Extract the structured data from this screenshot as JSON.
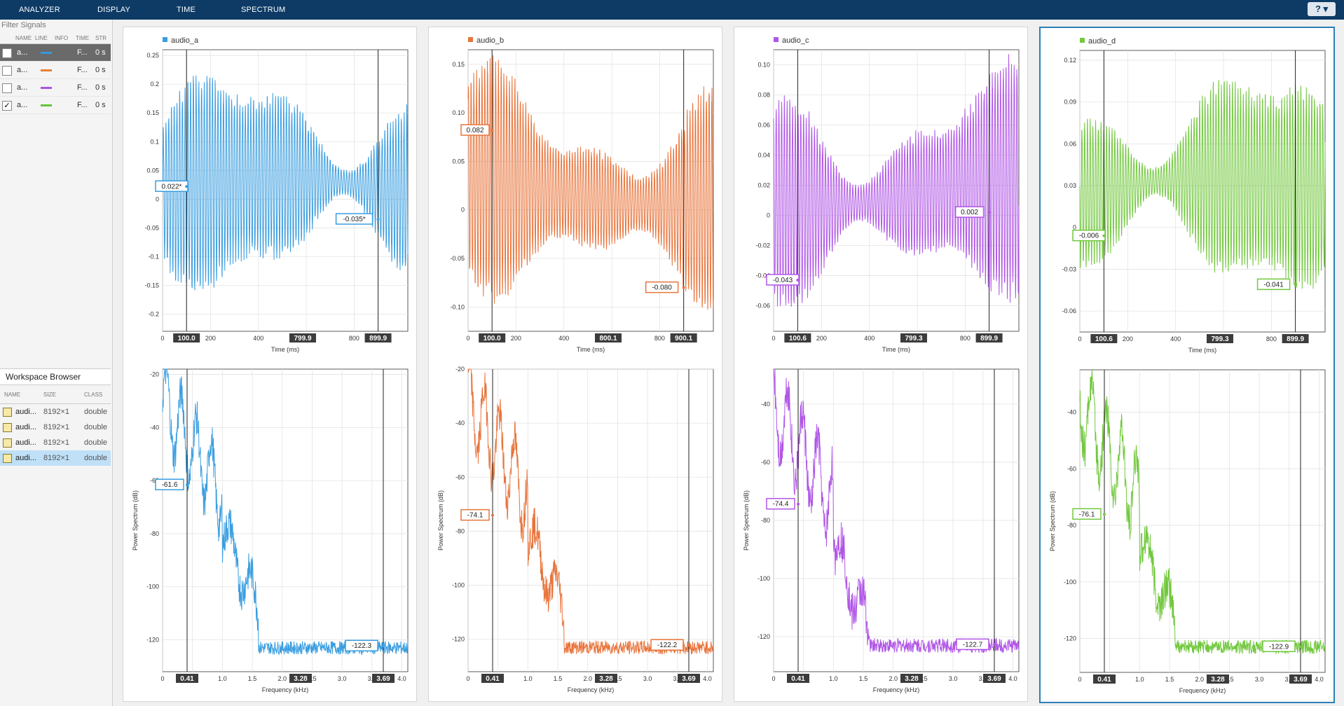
{
  "toolbar": {
    "tabs": [
      {
        "label": "ANALYZER"
      },
      {
        "label": "DISPLAY"
      },
      {
        "label": "TIME"
      },
      {
        "label": "SPECTRUM"
      }
    ],
    "help_label": "?"
  },
  "filter": {
    "placeholder": "Filter Signals"
  },
  "signal_table": {
    "headers": [
      "NAME",
      "LINE",
      "INFO",
      "TIME",
      "STR"
    ],
    "rows": [
      {
        "name": "a...",
        "color": "#3498db",
        "info": "F...",
        "time": "0 s",
        "checked": false,
        "selected": true
      },
      {
        "name": "a...",
        "color": "#e67e35",
        "info": "F...",
        "time": "0 s",
        "checked": false,
        "selected": false
      },
      {
        "name": "a...",
        "color": "#a855e0",
        "info": "F...",
        "time": "0 s",
        "checked": false,
        "selected": false
      },
      {
        "name": "a...",
        "color": "#66c43a",
        "info": "F...",
        "time": "0 s",
        "checked": true,
        "selected": false
      }
    ]
  },
  "workspace": {
    "title": "Workspace Browser",
    "headers": [
      "NAME",
      "SIZE",
      "CLASS"
    ],
    "rows": [
      {
        "name": "audi...",
        "size": "8192×1",
        "class": "double"
      },
      {
        "name": "audi...",
        "size": "8192×1",
        "class": "double"
      },
      {
        "name": "audi...",
        "size": "8192×1",
        "class": "double"
      },
      {
        "name": "audi...",
        "size": "8192×1",
        "class": "double",
        "selected": true
      }
    ]
  },
  "panels": [
    {
      "name": "audio_a",
      "color": "#3a9ee0",
      "time_plot": {
        "xlabel": "Time (ms)",
        "xlim": [
          0,
          1024
        ],
        "ylim": [
          -0.23,
          0.26
        ],
        "yticks": [
          "0.25",
          "0.2",
          "0.15",
          "0.1",
          "0.05",
          "0",
          "-0.05",
          "-0.1",
          "-0.15",
          "-0.2"
        ],
        "ytick_values": [
          0.25,
          0.2,
          0.15,
          0.1,
          0.05,
          0,
          -0.05,
          -0.1,
          -0.15,
          -0.2
        ],
        "xticks": [
          "0",
          "200",
          "400",
          "600",
          "800"
        ],
        "xtick_values": [
          0,
          200,
          400,
          600,
          800
        ],
        "cursor1": {
          "x": 100.0,
          "label": "100.0",
          "value": "0.022*",
          "y": 0.022
        },
        "cursor2": {
          "x": 899.9,
          "label": "899.9",
          "value": "-0.035*",
          "y": -0.035
        },
        "mid_label": "799.9"
      },
      "spec_plot": {
        "xlabel": "Frequency (kHz)",
        "ylabel": "Power Spectrum (dB)",
        "xlim": [
          0,
          4.1
        ],
        "ylim": [
          -132,
          -18
        ],
        "yticks": [
          "-20",
          "-40",
          "-60",
          "-80",
          "-100",
          "-120"
        ],
        "ytick_values": [
          -20,
          -40,
          -60,
          -80,
          -100,
          -120
        ],
        "xticks": [
          "0",
          "0.5",
          "1.0",
          "1.5",
          "2.0",
          "2.5",
          "3.0",
          "3.5",
          "4.0"
        ],
        "xtick_values": [
          0,
          0.5,
          1.0,
          1.5,
          2.0,
          2.5,
          3.0,
          3.5,
          4.0
        ],
        "cursor1": {
          "x": 0.41,
          "label": "0.41",
          "value": "-61.6",
          "y": -61.6
        },
        "cursor2": {
          "x": 3.69,
          "label": "3.69",
          "value": "-122.3",
          "y": -122.3
        },
        "mid_label": "3.28"
      }
    },
    {
      "name": "audio_b",
      "color": "#e8743b",
      "time_plot": {
        "xlabel": "Time (ms)",
        "xlim": [
          0,
          1024
        ],
        "ylim": [
          -0.125,
          0.165
        ],
        "yticks": [
          "0.15",
          "0.10",
          "0.05",
          "0",
          "-0.05",
          "-0.10"
        ],
        "ytick_values": [
          0.15,
          0.1,
          0.05,
          0,
          -0.05,
          -0.1
        ],
        "xticks": [
          "0",
          "200",
          "400",
          "600",
          "800"
        ],
        "xtick_values": [
          0,
          200,
          400,
          600,
          800
        ],
        "cursor1": {
          "x": 100.0,
          "label": "100.0",
          "value": "0.082",
          "y": 0.082
        },
        "cursor2": {
          "x": 900.1,
          "label": "900.1",
          "value": "-0.080",
          "y": -0.08
        },
        "mid_label": "800.1"
      },
      "spec_plot": {
        "xlabel": "Frequency (kHz)",
        "ylabel": "Power Spectrum (dB)",
        "xlim": [
          0,
          4.1
        ],
        "ylim": [
          -132,
          -20
        ],
        "yticks": [
          "-20",
          "-40",
          "-60",
          "-80",
          "-100",
          "-120"
        ],
        "ytick_values": [
          -20,
          -40,
          -60,
          -80,
          -100,
          -120
        ],
        "xticks": [
          "0",
          "0.5",
          "1.0",
          "1.5",
          "2.0",
          "2.5",
          "3.0",
          "3.5",
          "4.0"
        ],
        "xtick_values": [
          0,
          0.5,
          1.0,
          1.5,
          2.0,
          2.5,
          3.0,
          3.5,
          4.0
        ],
        "cursor1": {
          "x": 0.41,
          "label": "0.41",
          "value": "-74.1",
          "y": -74.1
        },
        "cursor2": {
          "x": 3.69,
          "label": "3.69",
          "value": "-122.2",
          "y": -122.2
        },
        "mid_label": "3.28"
      }
    },
    {
      "name": "audio_c",
      "color": "#b056e6",
      "time_plot": {
        "xlabel": "Time (ms)",
        "xlim": [
          0,
          1024
        ],
        "ylim": [
          -0.077,
          0.11
        ],
        "yticks": [
          "0.10",
          "0.08",
          "0.06",
          "0.04",
          "0.02",
          "0",
          "-0.02",
          "-0.04",
          "-0.06"
        ],
        "ytick_values": [
          0.1,
          0.08,
          0.06,
          0.04,
          0.02,
          0,
          -0.02,
          -0.04,
          -0.06
        ],
        "xticks": [
          "0",
          "200",
          "400",
          "600",
          "800"
        ],
        "xtick_values": [
          0,
          200,
          400,
          600,
          800
        ],
        "cursor1": {
          "x": 100.6,
          "label": "100.6",
          "value": "-0.043",
          "y": -0.043
        },
        "cursor2": {
          "x": 899.9,
          "label": "899.9",
          "value": "0.002",
          "y": 0.002
        },
        "mid_label": "799.3"
      },
      "spec_plot": {
        "xlabel": "Frequency (kHz)",
        "ylabel": "Power Spectrum (dB)",
        "xlim": [
          0,
          4.1
        ],
        "ylim": [
          -132,
          -28
        ],
        "yticks": [
          "-40",
          "-60",
          "-80",
          "-100",
          "-120"
        ],
        "ytick_values": [
          -40,
          -60,
          -80,
          -100,
          -120
        ],
        "xticks": [
          "0",
          "0.5",
          "1.0",
          "1.5",
          "2.0",
          "2.5",
          "3.0",
          "3.5",
          "4.0"
        ],
        "xtick_values": [
          0,
          0.5,
          1.0,
          1.5,
          2.0,
          2.5,
          3.0,
          3.5,
          4.0
        ],
        "cursor1": {
          "x": 0.41,
          "label": "0.41",
          "value": "-74.4",
          "y": -74.4
        },
        "cursor2": {
          "x": 3.69,
          "label": "3.69",
          "value": "-122.7",
          "y": -122.7
        },
        "mid_label": "3.28"
      }
    },
    {
      "name": "audio_d",
      "color": "#72c83e",
      "time_plot": {
        "xlabel": "Time (ms)",
        "xlim": [
          0,
          1024
        ],
        "ylim": [
          -0.075,
          0.127
        ],
        "yticks": [
          "0.12",
          "0.09",
          "0.06",
          "0.03",
          "0",
          "-0.03",
          "-0.06"
        ],
        "ytick_values": [
          0.12,
          0.09,
          0.06,
          0.03,
          0,
          -0.03,
          -0.06
        ],
        "xticks": [
          "0",
          "200",
          "400",
          "600",
          "800"
        ],
        "xtick_values": [
          0,
          200,
          400,
          600,
          800
        ],
        "cursor1": {
          "x": 100.6,
          "label": "100.6",
          "value": "-0.006",
          "y": -0.006
        },
        "cursor2": {
          "x": 899.9,
          "label": "899.9",
          "value": "-0.041",
          "y": -0.041
        },
        "mid_label": "799.3"
      },
      "spec_plot": {
        "xlabel": "Frequency (kHz)",
        "ylabel": "Power Spectrum (dB)",
        "xlim": [
          0,
          4.1
        ],
        "ylim": [
          -132,
          -25
        ],
        "yticks": [
          "-40",
          "-60",
          "-80",
          "-100",
          "-120"
        ],
        "ytick_values": [
          -40,
          -60,
          -80,
          -100,
          -120
        ],
        "xticks": [
          "0",
          "0.5",
          "1.0",
          "1.5",
          "2.0",
          "2.5",
          "3.0",
          "3.5",
          "4.0"
        ],
        "xtick_values": [
          0,
          0.5,
          1.0,
          1.5,
          2.0,
          2.5,
          3.0,
          3.5,
          4.0
        ],
        "cursor1": {
          "x": 0.41,
          "label": "0.41",
          "value": "-76.1",
          "y": -76.1
        },
        "cursor2": {
          "x": 3.69,
          "label": "3.69",
          "value": "-122.9",
          "y": -122.9
        },
        "mid_label": "3.28"
      }
    }
  ]
}
